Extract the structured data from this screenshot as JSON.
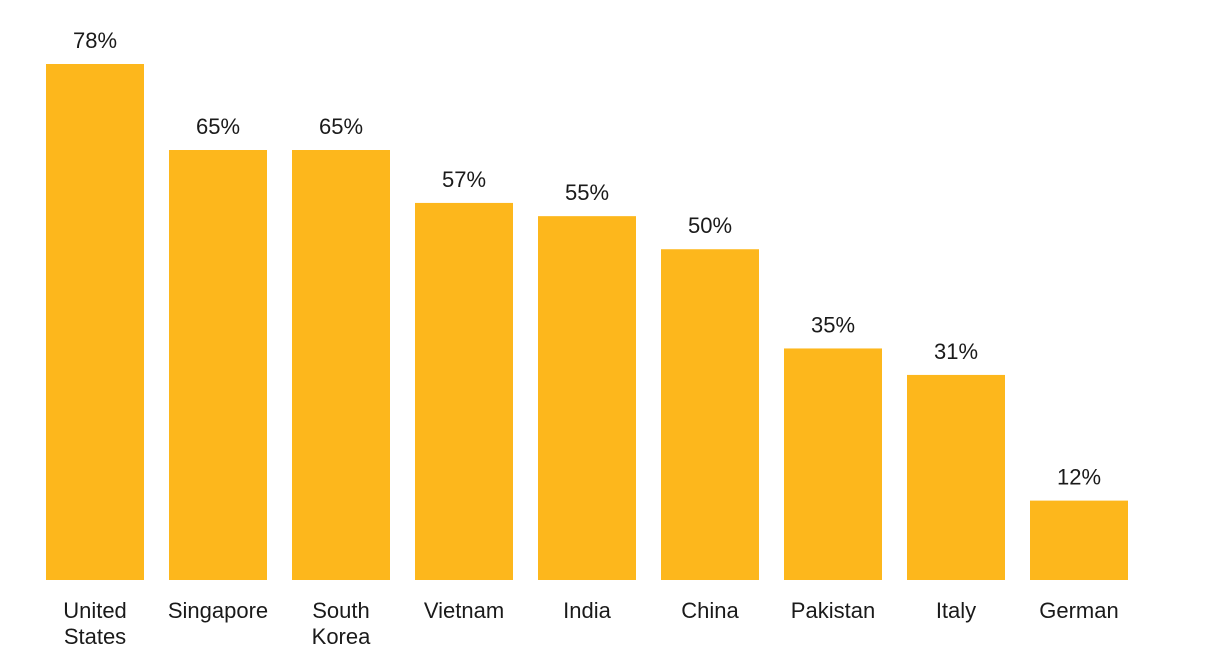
{
  "chart_data": {
    "type": "bar",
    "title": "",
    "xlabel": "",
    "ylabel": "",
    "ylim": [
      0,
      78
    ],
    "grid": false,
    "legend": "none",
    "value_suffix": "%",
    "bar_color": "#FDB71C",
    "text_color": "#1a1a1a",
    "categories": [
      [
        "United",
        "States"
      ],
      [
        "Singapore"
      ],
      [
        "South",
        "Korea"
      ],
      [
        "Vietnam"
      ],
      [
        "India"
      ],
      [
        "China"
      ],
      [
        "Pakistan"
      ],
      [
        "Italy"
      ],
      [
        "German"
      ]
    ],
    "values": [
      78,
      65,
      65,
      57,
      55,
      50,
      35,
      31,
      12
    ]
  }
}
